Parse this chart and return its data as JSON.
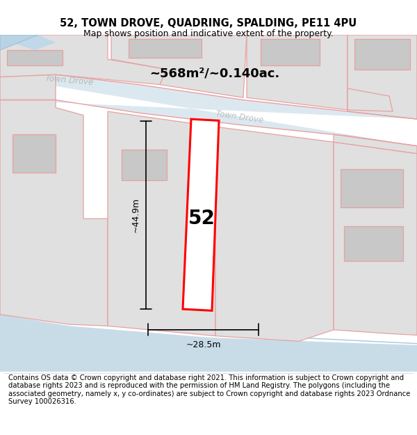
{
  "title": "52, TOWN DROVE, QUADRING, SPALDING, PE11 4PU",
  "subtitle": "Map shows position and indicative extent of the property.",
  "footer": "Contains OS data © Crown copyright and database right 2021. This information is subject to Crown copyright and database rights 2023 and is reproduced with the permission of HM Land Registry. The polygons (including the associated geometry, namely x, y co-ordinates) are subject to Crown copyright and database rights 2023 Ordnance Survey 100026316.",
  "area_text": "~568m²/~0.140ac.",
  "width_text": "~28.5m",
  "height_text": "~44.9m",
  "house_number": "52",
  "outline_color": "#e8a0a0",
  "plot_color": "#ff0000",
  "road_blue": "#c8dce8",
  "gray_dark": "#c8c8c8",
  "gray_light": "#e0e0e0"
}
